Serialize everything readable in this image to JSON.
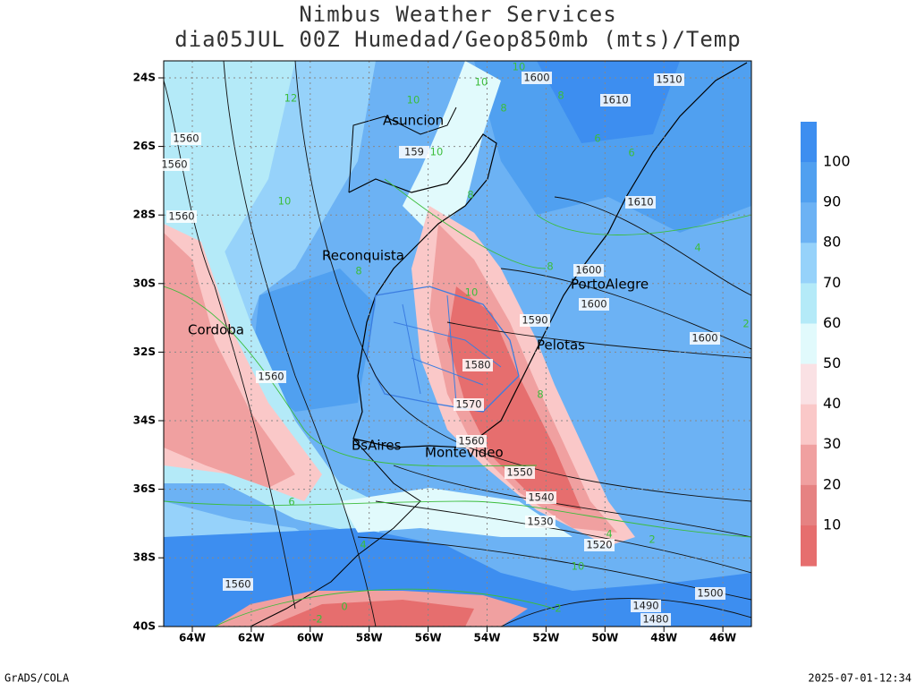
{
  "header": {
    "title": "Nimbus Weather Services",
    "subtitle": "dia05JUL 00Z Humedad/Geop850mb (mts)/Temp"
  },
  "axes": {
    "lat_labels": [
      "24S",
      "26S",
      "28S",
      "30S",
      "32S",
      "34S",
      "36S",
      "38S",
      "40S"
    ],
    "lon_labels": [
      "64W",
      "62W",
      "60W",
      "58W",
      "56W",
      "54W",
      "52W",
      "50W",
      "48W",
      "46W"
    ]
  },
  "cities": [
    "Asuncion",
    "Reconquista",
    "Cordoba",
    "PortoAlegre",
    "Pelotas",
    "BsAires",
    "Montevideo"
  ],
  "geopotential_labels": [
    "1600",
    "1610",
    "1510",
    "1610",
    "1560",
    "1560",
    "1560",
    "1600",
    "1600",
    "1590",
    "1600",
    "1580",
    "1570",
    "1560",
    "1550",
    "1540",
    "1530",
    "1520",
    "1560",
    "1560",
    "1500",
    "1490",
    "1480",
    "159"
  ],
  "temperature_labels": [
    "10",
    "10",
    "12",
    "10",
    "8",
    "8",
    "10",
    "10",
    "8",
    "8",
    "10",
    "6",
    "6",
    "8",
    "8",
    "4",
    "2",
    "4",
    "6",
    "4",
    "2",
    "0",
    "-2",
    "-2",
    "10"
  ],
  "colorbar": {
    "labels": [
      "100",
      "90",
      "80",
      "70",
      "60",
      "50",
      "40",
      "30",
      "20",
      "10"
    ]
  },
  "footer": {
    "left": "GrADS/COLA",
    "right": "2025-07-01-12:34"
  }
}
